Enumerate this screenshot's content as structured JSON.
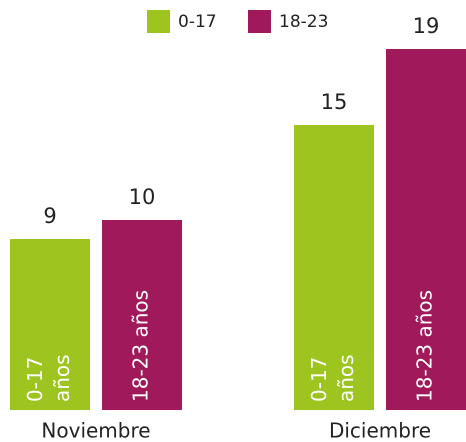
{
  "chart_data": {
    "type": "bar",
    "categories": [
      "Noviembre",
      "Diciembre"
    ],
    "series": [
      {
        "name": "0-17",
        "color": "#9dc41f",
        "values": [
          9,
          15
        ],
        "inner_label": [
          "0-17",
          "años"
        ]
      },
      {
        "name": "18-23",
        "color": "#a0195a",
        "values": [
          10,
          19
        ],
        "inner_label": [
          "18-23 años"
        ]
      }
    ],
    "ylim": [
      0,
      20
    ],
    "legend": "top"
  }
}
